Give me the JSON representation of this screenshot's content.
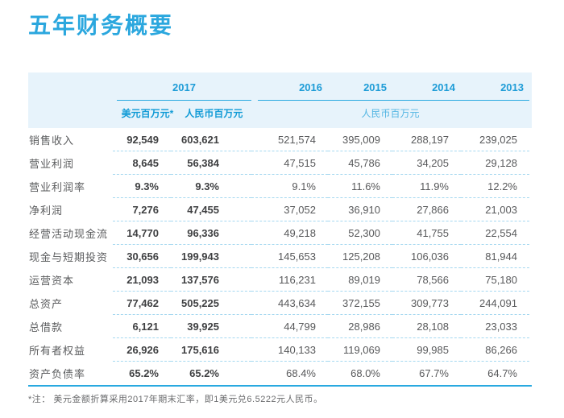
{
  "title": "五年财务概要",
  "colors": {
    "accent": "#29A9E0",
    "header_bg": "#E7F3FB",
    "title_blue": "#2BA7DE",
    "dashed_separator": "#A5D8F0",
    "bold_value_text": "#3F4042",
    "value_text": "#58595B"
  },
  "table": {
    "group_2017_label": "2017",
    "subheader_usd": "美元百万元*",
    "subheader_rmb": "人民币百万元",
    "group_rmb_label": "人民币百万元",
    "years": [
      "2016",
      "2015",
      "2014",
      "2013"
    ],
    "rows": [
      {
        "label": "销售收入",
        "usd": "92,549",
        "rmb": "603,621",
        "values": [
          "521,574",
          "395,009",
          "288,197",
          "239,025"
        ]
      },
      {
        "label": "营业利润",
        "usd": "8,645",
        "rmb": "56,384",
        "values": [
          "47,515",
          "45,786",
          "34,205",
          "29,128"
        ]
      },
      {
        "label": "营业利润率",
        "usd": "9.3%",
        "rmb": "9.3%",
        "values": [
          "9.1%",
          "11.6%",
          "11.9%",
          "12.2%"
        ]
      },
      {
        "label": "净利润",
        "usd": "7,276",
        "rmb": "47,455",
        "values": [
          "37,052",
          "36,910",
          "27,866",
          "21,003"
        ]
      },
      {
        "label": "经营活动现金流",
        "usd": "14,770",
        "rmb": "96,336",
        "values": [
          "49,218",
          "52,300",
          "41,755",
          "22,554"
        ]
      },
      {
        "label": "现金与短期投资",
        "usd": "30,656",
        "rmb": "199,943",
        "values": [
          "145,653",
          "125,208",
          "106,036",
          "81,944"
        ]
      },
      {
        "label": "运营资本",
        "usd": "21,093",
        "rmb": "137,576",
        "values": [
          "116,231",
          "89,019",
          "78,566",
          "75,180"
        ]
      },
      {
        "label": "总资产",
        "usd": "77,462",
        "rmb": "505,225",
        "values": [
          "443,634",
          "372,155",
          "309,773",
          "244,091"
        ]
      },
      {
        "label": "总借款",
        "usd": "6,121",
        "rmb": "39,925",
        "values": [
          "44,799",
          "28,986",
          "28,108",
          "23,033"
        ]
      },
      {
        "label": "所有者权益",
        "usd": "26,926",
        "rmb": "175,616",
        "values": [
          "140,133",
          "119,069",
          "99,985",
          "86,266"
        ]
      },
      {
        "label": "资产负债率",
        "usd": "65.2%",
        "rmb": "65.2%",
        "values": [
          "68.4%",
          "68.0%",
          "67.7%",
          "64.7%"
        ]
      }
    ]
  },
  "footnote": "*注： 美元金额折算采用2017年期末汇率，即1美元兑6.5222元人民币。"
}
